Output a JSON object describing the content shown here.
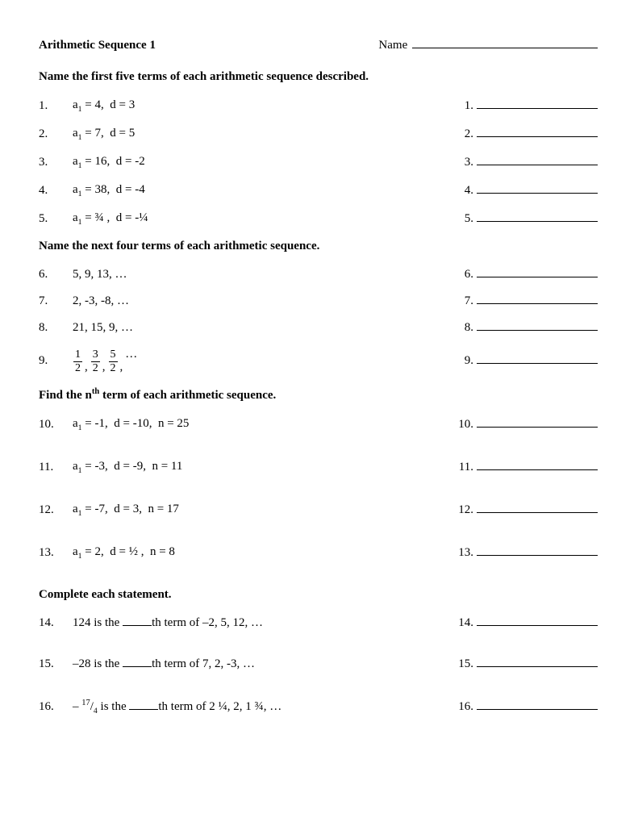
{
  "header": {
    "title": "Arithmetic Sequence 1",
    "name_label": "Name"
  },
  "sections": [
    {
      "heading_html": "Name the first five terms of each arithmetic sequence described.",
      "row_gap": "normal",
      "problems": [
        {
          "n": "1.",
          "html": "a<sub>1</sub> = 4,&nbsp; d = 3"
        },
        {
          "n": "2.",
          "html": "a<sub>1</sub> = 7,&nbsp; d = 5"
        },
        {
          "n": "3.",
          "html": "a<sub>1</sub> = 16,&nbsp; d = -2"
        },
        {
          "n": "4.",
          "html": "a<sub>1</sub> = 38,&nbsp; d = -4"
        },
        {
          "n": "5.",
          "html": "a<sub>1</sub> = ¾ ,&nbsp; d = -¼"
        }
      ]
    },
    {
      "heading_html": "Name the next four terms of each arithmetic sequence.",
      "row_gap": "normal",
      "problems": [
        {
          "n": "6.",
          "html": "5, 9, 13, …"
        },
        {
          "n": "7.",
          "html": "2, -3, -8, …"
        },
        {
          "n": "8.",
          "html": "21, 15, 9, …"
        },
        {
          "n": "9.",
          "html": "<span class=\"frac-group\"><span class=\"frac\"><span class=\"num\">1</span><span class=\"den\">2</span></span><span class=\"frac-sep\">,</span><span class=\"frac\"><span class=\"num\">3</span><span class=\"den\">2</span></span><span class=\"frac-sep\">,</span><span class=\"frac\"><span class=\"num\">5</span><span class=\"den\">2</span></span><span class=\"frac-sep\">,</span></span>…"
        }
      ]
    },
    {
      "heading_html": "Find the n<sup>th</sup> term of each arithmetic sequence.",
      "row_gap": "wide",
      "problems": [
        {
          "n": "10.",
          "html": "a<sub>1</sub> = -1,&nbsp; d = -10,&nbsp;&nbsp;n = 25"
        },
        {
          "n": "11.",
          "html": "a<sub>1</sub> = -3,&nbsp; d = -9,&nbsp; n = 11"
        },
        {
          "n": "12.",
          "html": "a<sub>1</sub> = -7,&nbsp; d = 3,&nbsp; n = 17"
        },
        {
          "n": "13.",
          "html": "a<sub>1</sub> = 2,&nbsp; d = ½ ,&nbsp; n = 8"
        }
      ]
    },
    {
      "heading_html": "Complete each statement.",
      "row_gap": "wide",
      "problems": [
        {
          "n": "14.",
          "html": "124 is the <span class=\"short-blank\"></span>th term of –2, 5, 12, …"
        },
        {
          "n": "15.",
          "html": "–28 is the <span class=\"short-blank\"></span>th term of 7, 2, -3, …"
        },
        {
          "n": "16.",
          "html": "– <sup>17</sup>/<sub>4</sub> is the <span class=\"short-blank\"></span>th term of 2 ¼, 2, 1 ¾, …"
        }
      ]
    }
  ]
}
